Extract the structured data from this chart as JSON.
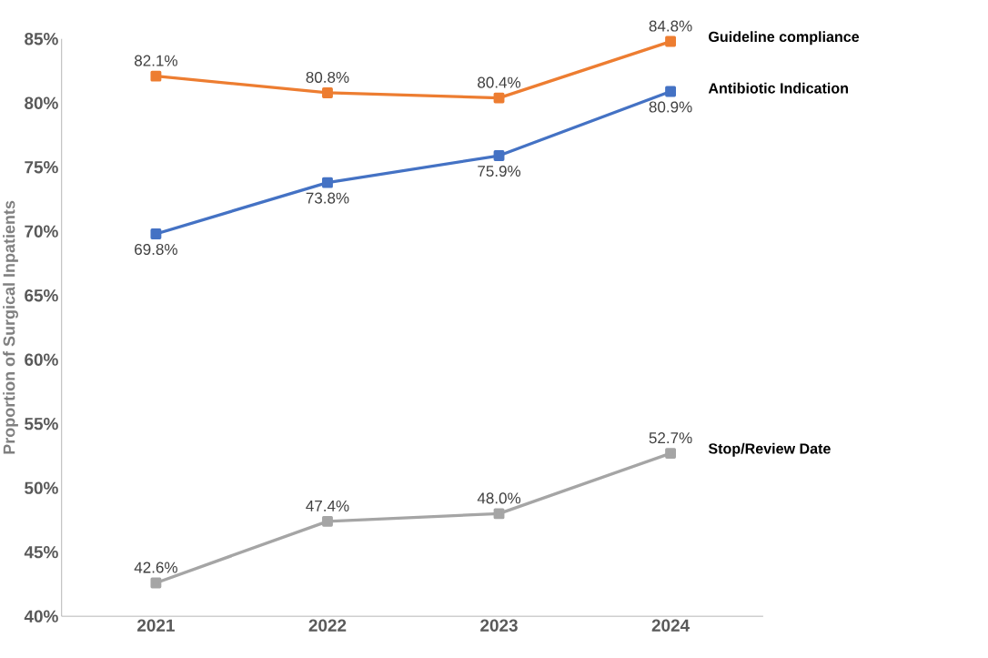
{
  "chart_data": {
    "type": "line",
    "ylabel": "Proportion of Surgical Inpatients",
    "categories": [
      "2021",
      "2022",
      "2023",
      "2024"
    ],
    "ylim": [
      40,
      85
    ],
    "yticks": [
      {
        "value": 40,
        "label": "40%"
      },
      {
        "value": 45,
        "label": "45%"
      },
      {
        "value": 50,
        "label": "50%"
      },
      {
        "value": 55,
        "label": "55%"
      },
      {
        "value": 60,
        "label": "60%"
      },
      {
        "value": 65,
        "label": "65%"
      },
      {
        "value": 70,
        "label": "70%"
      },
      {
        "value": 75,
        "label": "75%"
      },
      {
        "value": 80,
        "label": "80%"
      },
      {
        "value": 85,
        "label": "85%"
      }
    ],
    "marker": "square",
    "line_style": "solid",
    "grid": false,
    "series": [
      {
        "name": "Guideline compliance",
        "color": "#ed7d31",
        "values": [
          82.1,
          80.8,
          80.4,
          84.8
        ],
        "value_labels": [
          "82.1%",
          "80.8%",
          "80.4%",
          "84.8%"
        ]
      },
      {
        "name": "Antibiotic Indication",
        "color": "#4472c4",
        "values": [
          69.8,
          73.8,
          75.9,
          80.9
        ],
        "value_labels": [
          "69.8%",
          "73.8%",
          "75.9%",
          "80.9%"
        ]
      },
      {
        "name": "Stop/Review Date",
        "color": "#a5a5a5",
        "values": [
          42.6,
          47.4,
          48.0,
          52.7
        ],
        "value_labels": [
          "42.6%",
          "47.4%",
          "48.0%",
          "52.7%"
        ]
      }
    ]
  }
}
